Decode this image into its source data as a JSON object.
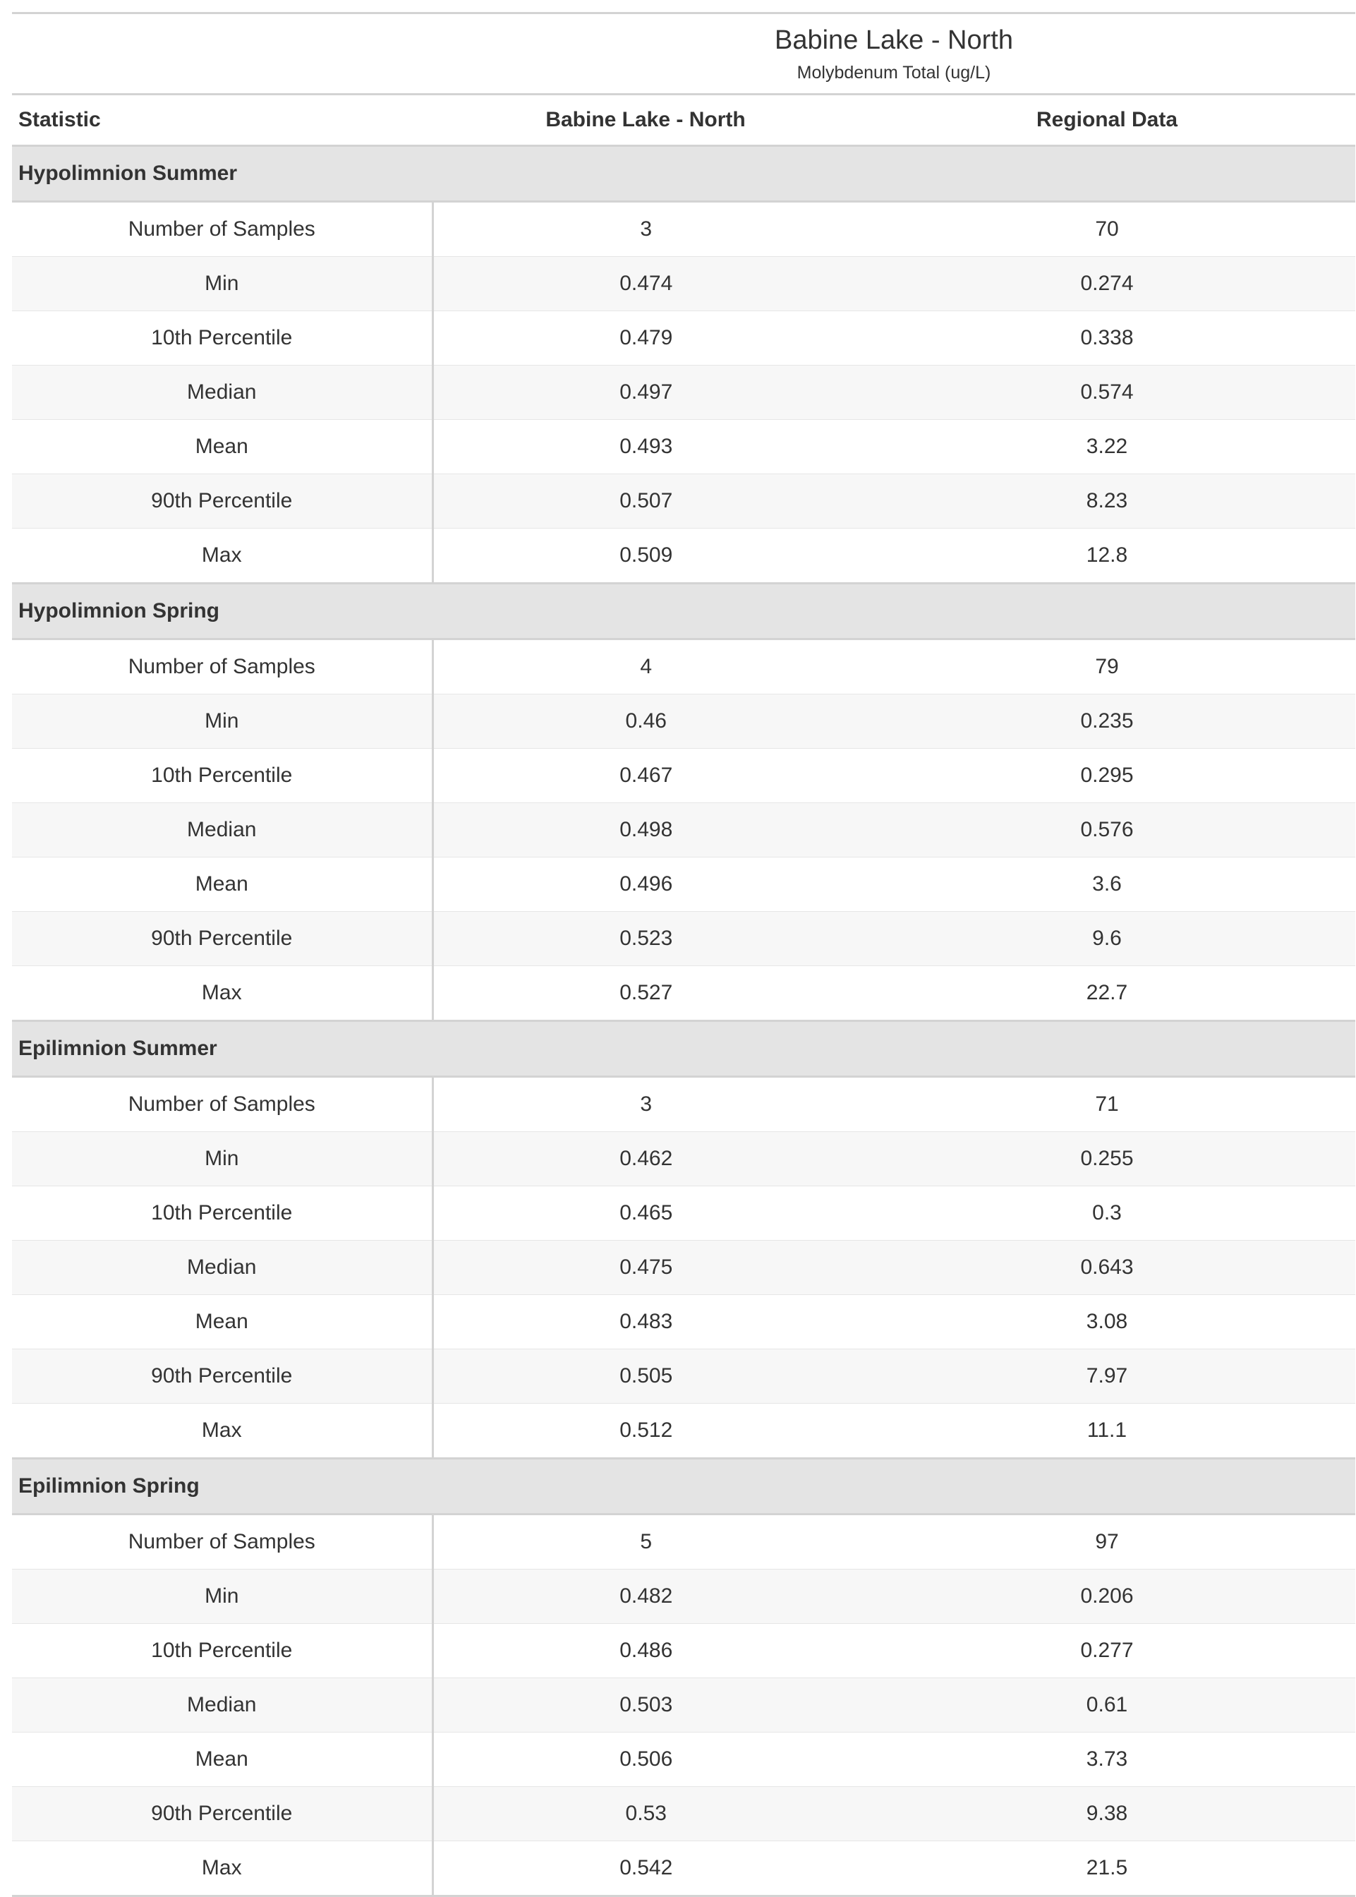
{
  "title": "Babine Lake - North",
  "subtitle": "Molybdenum Total (ug/L)",
  "columns": [
    "Statistic",
    "Babine Lake - North",
    "Regional Data"
  ],
  "groups": [
    {
      "label": "Hypolimnion Summer",
      "rows": [
        {
          "stat": "Number of Samples",
          "site": "3",
          "regional": "70"
        },
        {
          "stat": "Min",
          "site": "0.474",
          "regional": "0.274"
        },
        {
          "stat": "10th Percentile",
          "site": "0.479",
          "regional": "0.338"
        },
        {
          "stat": "Median",
          "site": "0.497",
          "regional": "0.574"
        },
        {
          "stat": "Mean",
          "site": "0.493",
          "regional": "3.22"
        },
        {
          "stat": "90th Percentile",
          "site": "0.507",
          "regional": "8.23"
        },
        {
          "stat": "Max",
          "site": "0.509",
          "regional": "12.8"
        }
      ]
    },
    {
      "label": "Hypolimnion Spring",
      "rows": [
        {
          "stat": "Number of Samples",
          "site": "4",
          "regional": "79"
        },
        {
          "stat": "Min",
          "site": "0.46",
          "regional": "0.235"
        },
        {
          "stat": "10th Percentile",
          "site": "0.467",
          "regional": "0.295"
        },
        {
          "stat": "Median",
          "site": "0.498",
          "regional": "0.576"
        },
        {
          "stat": "Mean",
          "site": "0.496",
          "regional": "3.6"
        },
        {
          "stat": "90th Percentile",
          "site": "0.523",
          "regional": "9.6"
        },
        {
          "stat": "Max",
          "site": "0.527",
          "regional": "22.7"
        }
      ]
    },
    {
      "label": "Epilimnion Summer",
      "rows": [
        {
          "stat": "Number of Samples",
          "site": "3",
          "regional": "71"
        },
        {
          "stat": "Min",
          "site": "0.462",
          "regional": "0.255"
        },
        {
          "stat": "10th Percentile",
          "site": "0.465",
          "regional": "0.3"
        },
        {
          "stat": "Median",
          "site": "0.475",
          "regional": "0.643"
        },
        {
          "stat": "Mean",
          "site": "0.483",
          "regional": "3.08"
        },
        {
          "stat": "90th Percentile",
          "site": "0.505",
          "regional": "7.97"
        },
        {
          "stat": "Max",
          "site": "0.512",
          "regional": "11.1"
        }
      ]
    },
    {
      "label": "Epilimnion Spring",
      "rows": [
        {
          "stat": "Number of Samples",
          "site": "5",
          "regional": "97"
        },
        {
          "stat": "Min",
          "site": "0.482",
          "regional": "0.206"
        },
        {
          "stat": "10th Percentile",
          "site": "0.486",
          "regional": "0.277"
        },
        {
          "stat": "Median",
          "site": "0.503",
          "regional": "0.61"
        },
        {
          "stat": "Mean",
          "site": "0.506",
          "regional": "3.73"
        },
        {
          "stat": "90th Percentile",
          "site": "0.53",
          "regional": "9.38"
        },
        {
          "stat": "Max",
          "site": "0.542",
          "regional": "21.5"
        }
      ]
    }
  ]
}
